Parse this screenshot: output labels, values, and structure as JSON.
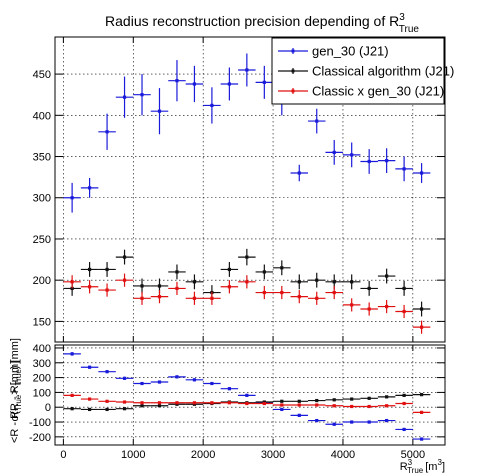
{
  "chart_data": [
    {
      "type": "scatter",
      "panel": "top",
      "title": "Radius reconstruction precision depending of R",
      "title_sup": "3",
      "title_sub": "True",
      "ylabel_main": "σ(R - R",
      "ylabel_sub": "True",
      "ylabel_tail": ") [mm]",
      "ylim": [
        125,
        495
      ],
      "xlim": [
        -120,
        5460
      ],
      "yticks": [
        150,
        200,
        250,
        300,
        350,
        400,
        450
      ],
      "grid": true,
      "legend_placement": "top-right",
      "series": [
        {
          "name": "gen_30 (J21)",
          "color": "#1a1adb",
          "x": [
            125,
            375,
            625,
            875,
            1125,
            1375,
            1625,
            1875,
            2125,
            2375,
            2625,
            2875,
            3125,
            3375,
            3625,
            3875,
            4125,
            4375,
            4625,
            4875,
            5125
          ],
          "y": [
            300,
            312,
            380,
            422,
            425,
            405,
            442,
            438,
            412,
            438,
            455,
            440,
            420,
            330,
            393,
            355,
            352,
            344,
            345,
            335,
            330
          ],
          "err": [
            18,
            12,
            22,
            25,
            25,
            28,
            25,
            22,
            22,
            20,
            20,
            20,
            20,
            10,
            15,
            15,
            15,
            15,
            15,
            15,
            12
          ]
        },
        {
          "name": "Classical algorithm (J21)",
          "color": "#111111",
          "x": [
            125,
            375,
            625,
            875,
            1125,
            1375,
            1625,
            1875,
            2125,
            2375,
            2625,
            2875,
            3125,
            3375,
            3625,
            3875,
            4125,
            4375,
            4625,
            4875,
            5125
          ],
          "y": [
            190,
            213,
            213,
            228,
            193,
            193,
            210,
            198,
            185,
            213,
            228,
            210,
            215,
            198,
            200,
            198,
            198,
            190,
            205,
            190,
            165
          ],
          "err": [
            9,
            9,
            9,
            9,
            9,
            9,
            9,
            9,
            9,
            9,
            10,
            9,
            9,
            9,
            9,
            9,
            9,
            9,
            9,
            9,
            9
          ]
        },
        {
          "name": "Classic x gen_30 (J21)",
          "color": "#e01010",
          "x": [
            125,
            375,
            625,
            875,
            1125,
            1375,
            1625,
            1875,
            2125,
            2375,
            2625,
            2875,
            3125,
            3375,
            3625,
            3875,
            4125,
            4375,
            4625,
            4875,
            5125
          ],
          "y": [
            198,
            192,
            188,
            200,
            178,
            180,
            190,
            178,
            178,
            192,
            198,
            185,
            185,
            180,
            178,
            185,
            170,
            165,
            168,
            162,
            143
          ],
          "err": [
            8,
            8,
            8,
            8,
            8,
            8,
            8,
            8,
            8,
            8,
            8,
            8,
            8,
            8,
            8,
            8,
            8,
            8,
            8,
            8,
            8
          ]
        }
      ]
    },
    {
      "type": "scatter",
      "panel": "bottom",
      "ylabel_main": "<R - R",
      "ylabel_sub": "True",
      "ylabel_tail": "> [mm]",
      "xlabel_main": "R",
      "xlabel_sup": "3",
      "xlabel_sub": "True",
      "xlabel_tail": "[m",
      "xlabel_unit_sup": "3",
      "xlabel_end": "]",
      "ylim": [
        -255,
        420
      ],
      "xlim": [
        -120,
        5460
      ],
      "yticks": [
        -200,
        -100,
        0,
        100,
        200,
        300,
        400
      ],
      "xticks": [
        0,
        1000,
        2000,
        3000,
        4000,
        5000
      ],
      "grid": true,
      "series": [
        {
          "name": "gen_30 (J21)",
          "color": "#1a1adb",
          "x": [
            125,
            375,
            625,
            875,
            1125,
            1375,
            1625,
            1875,
            2125,
            2375,
            2625,
            2875,
            3125,
            3375,
            3625,
            3875,
            4125,
            4375,
            4625,
            4875,
            5125
          ],
          "y": [
            360,
            270,
            240,
            195,
            160,
            170,
            205,
            185,
            160,
            125,
            80,
            30,
            -15,
            -55,
            -90,
            -115,
            -100,
            -100,
            -90,
            -150,
            -215
          ],
          "err": [
            12,
            10,
            10,
            10,
            10,
            10,
            10,
            10,
            10,
            10,
            10,
            10,
            10,
            10,
            10,
            10,
            10,
            10,
            10,
            10,
            10
          ]
        },
        {
          "name": "Classical algorithm (J21)",
          "color": "#111111",
          "x": [
            125,
            375,
            625,
            875,
            1125,
            1375,
            1625,
            1875,
            2125,
            2375,
            2625,
            2875,
            3125,
            3375,
            3625,
            3875,
            4125,
            4375,
            4625,
            4875,
            5125
          ],
          "y": [
            -10,
            -15,
            -15,
            -10,
            10,
            10,
            20,
            20,
            25,
            35,
            30,
            35,
            40,
            40,
            45,
            50,
            55,
            60,
            70,
            80,
            85
          ],
          "err": [
            6,
            6,
            6,
            6,
            6,
            6,
            6,
            6,
            6,
            6,
            6,
            6,
            6,
            6,
            6,
            6,
            6,
            6,
            6,
            6,
            6
          ]
        },
        {
          "name": "Classic x gen_30 (J21)",
          "color": "#e01010",
          "x": [
            125,
            375,
            625,
            875,
            1125,
            1375,
            1625,
            1875,
            2125,
            2375,
            2625,
            2875,
            3125,
            3375,
            3625,
            3875,
            4125,
            4375,
            4625,
            4875,
            5125
          ],
          "y": [
            80,
            55,
            40,
            35,
            30,
            30,
            30,
            30,
            30,
            30,
            25,
            25,
            15,
            15,
            15,
            10,
            5,
            5,
            10,
            25,
            -35
          ],
          "err": [
            6,
            6,
            6,
            6,
            6,
            6,
            6,
            6,
            6,
            6,
            6,
            6,
            6,
            6,
            6,
            6,
            6,
            6,
            6,
            6,
            6
          ]
        }
      ]
    }
  ]
}
